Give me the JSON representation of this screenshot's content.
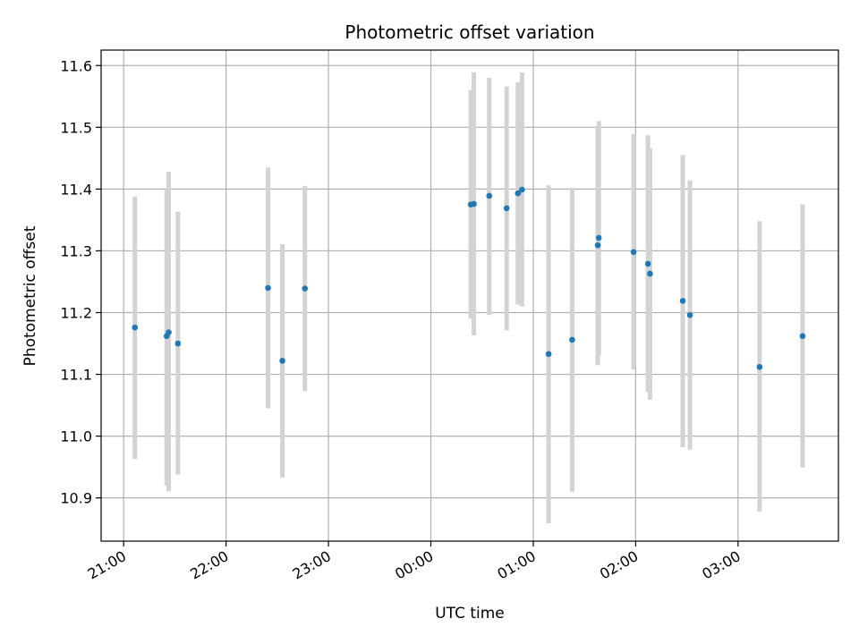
{
  "chart_data": {
    "type": "scatter",
    "title": "Photometric offset variation",
    "xlabel": "UTC time",
    "ylabel": "Photometric offset",
    "xlim_hours": [
      20.78,
      27.98
    ],
    "ylim": [
      10.83,
      11.625
    ],
    "grid": true,
    "x_ticks": [
      {
        "value": 21,
        "label": "21:00"
      },
      {
        "value": 22,
        "label": "22:00"
      },
      {
        "value": 23,
        "label": "23:00"
      },
      {
        "value": 24,
        "label": "00:00"
      },
      {
        "value": 25,
        "label": "01:00"
      },
      {
        "value": 26,
        "label": "02:00"
      },
      {
        "value": 27,
        "label": "03:00"
      }
    ],
    "y_ticks": [
      {
        "value": 10.9,
        "label": "10.9"
      },
      {
        "value": 11.0,
        "label": "11.0"
      },
      {
        "value": 11.1,
        "label": "11.1"
      },
      {
        "value": 11.2,
        "label": "11.2"
      },
      {
        "value": 11.3,
        "label": "11.3"
      },
      {
        "value": 11.4,
        "label": "11.4"
      },
      {
        "value": 11.5,
        "label": "11.5"
      },
      {
        "value": 11.6,
        "label": "11.6"
      }
    ],
    "point_color": "#1f77b4",
    "errorbar_color": "#d3d3d3",
    "points": [
      {
        "time": "21:06",
        "x": 21.11,
        "y": 11.176,
        "lo": 10.963,
        "hi": 11.388
      },
      {
        "time": "21:25",
        "x": 21.42,
        "y": 11.162,
        "lo": 10.92,
        "hi": 11.4
      },
      {
        "time": "21:26",
        "x": 21.44,
        "y": 11.168,
        "lo": 10.911,
        "hi": 11.428
      },
      {
        "time": "21:32",
        "x": 21.53,
        "y": 11.15,
        "lo": 10.938,
        "hi": 11.363
      },
      {
        "time": "22:25",
        "x": 22.41,
        "y": 11.24,
        "lo": 11.045,
        "hi": 11.435
      },
      {
        "time": "22:33",
        "x": 22.55,
        "y": 11.122,
        "lo": 10.933,
        "hi": 11.311
      },
      {
        "time": "22:46",
        "x": 22.77,
        "y": 11.239,
        "lo": 11.073,
        "hi": 11.405
      },
      {
        "time": "00:23",
        "x": 24.39,
        "y": 11.375,
        "lo": 11.19,
        "hi": 11.56
      },
      {
        "time": "00:25",
        "x": 24.42,
        "y": 11.376,
        "lo": 11.163,
        "hi": 11.589
      },
      {
        "time": "00:34",
        "x": 24.57,
        "y": 11.389,
        "lo": 11.196,
        "hi": 11.58
      },
      {
        "time": "00:44",
        "x": 24.74,
        "y": 11.369,
        "lo": 11.171,
        "hi": 11.566
      },
      {
        "time": "00:51",
        "x": 24.85,
        "y": 11.393,
        "lo": 11.213,
        "hi": 11.573
      },
      {
        "time": "00:53",
        "x": 24.89,
        "y": 11.399,
        "lo": 11.21,
        "hi": 11.589
      },
      {
        "time": "01:09",
        "x": 25.15,
        "y": 11.133,
        "lo": 10.859,
        "hi": 11.406
      },
      {
        "time": "01:23",
        "x": 25.38,
        "y": 11.156,
        "lo": 10.91,
        "hi": 11.402
      },
      {
        "time": "01:38",
        "x": 25.63,
        "y": 11.309,
        "lo": 11.115,
        "hi": 11.502
      },
      {
        "time": "01:38",
        "x": 25.64,
        "y": 11.321,
        "lo": 11.131,
        "hi": 11.51
      },
      {
        "time": "01:59",
        "x": 25.98,
        "y": 11.298,
        "lo": 11.108,
        "hi": 11.489
      },
      {
        "time": "02:07",
        "x": 26.12,
        "y": 11.279,
        "lo": 11.071,
        "hi": 11.487
      },
      {
        "time": "02:08",
        "x": 26.14,
        "y": 11.263,
        "lo": 11.059,
        "hi": 11.466
      },
      {
        "time": "02:27",
        "x": 26.46,
        "y": 11.219,
        "lo": 10.982,
        "hi": 11.455
      },
      {
        "time": "02:32",
        "x": 26.53,
        "y": 11.196,
        "lo": 10.978,
        "hi": 11.414
      },
      {
        "time": "03:13",
        "x": 27.21,
        "y": 11.112,
        "lo": 10.878,
        "hi": 11.348
      },
      {
        "time": "03:38",
        "x": 27.63,
        "y": 11.162,
        "lo": 10.949,
        "hi": 11.375
      }
    ]
  }
}
